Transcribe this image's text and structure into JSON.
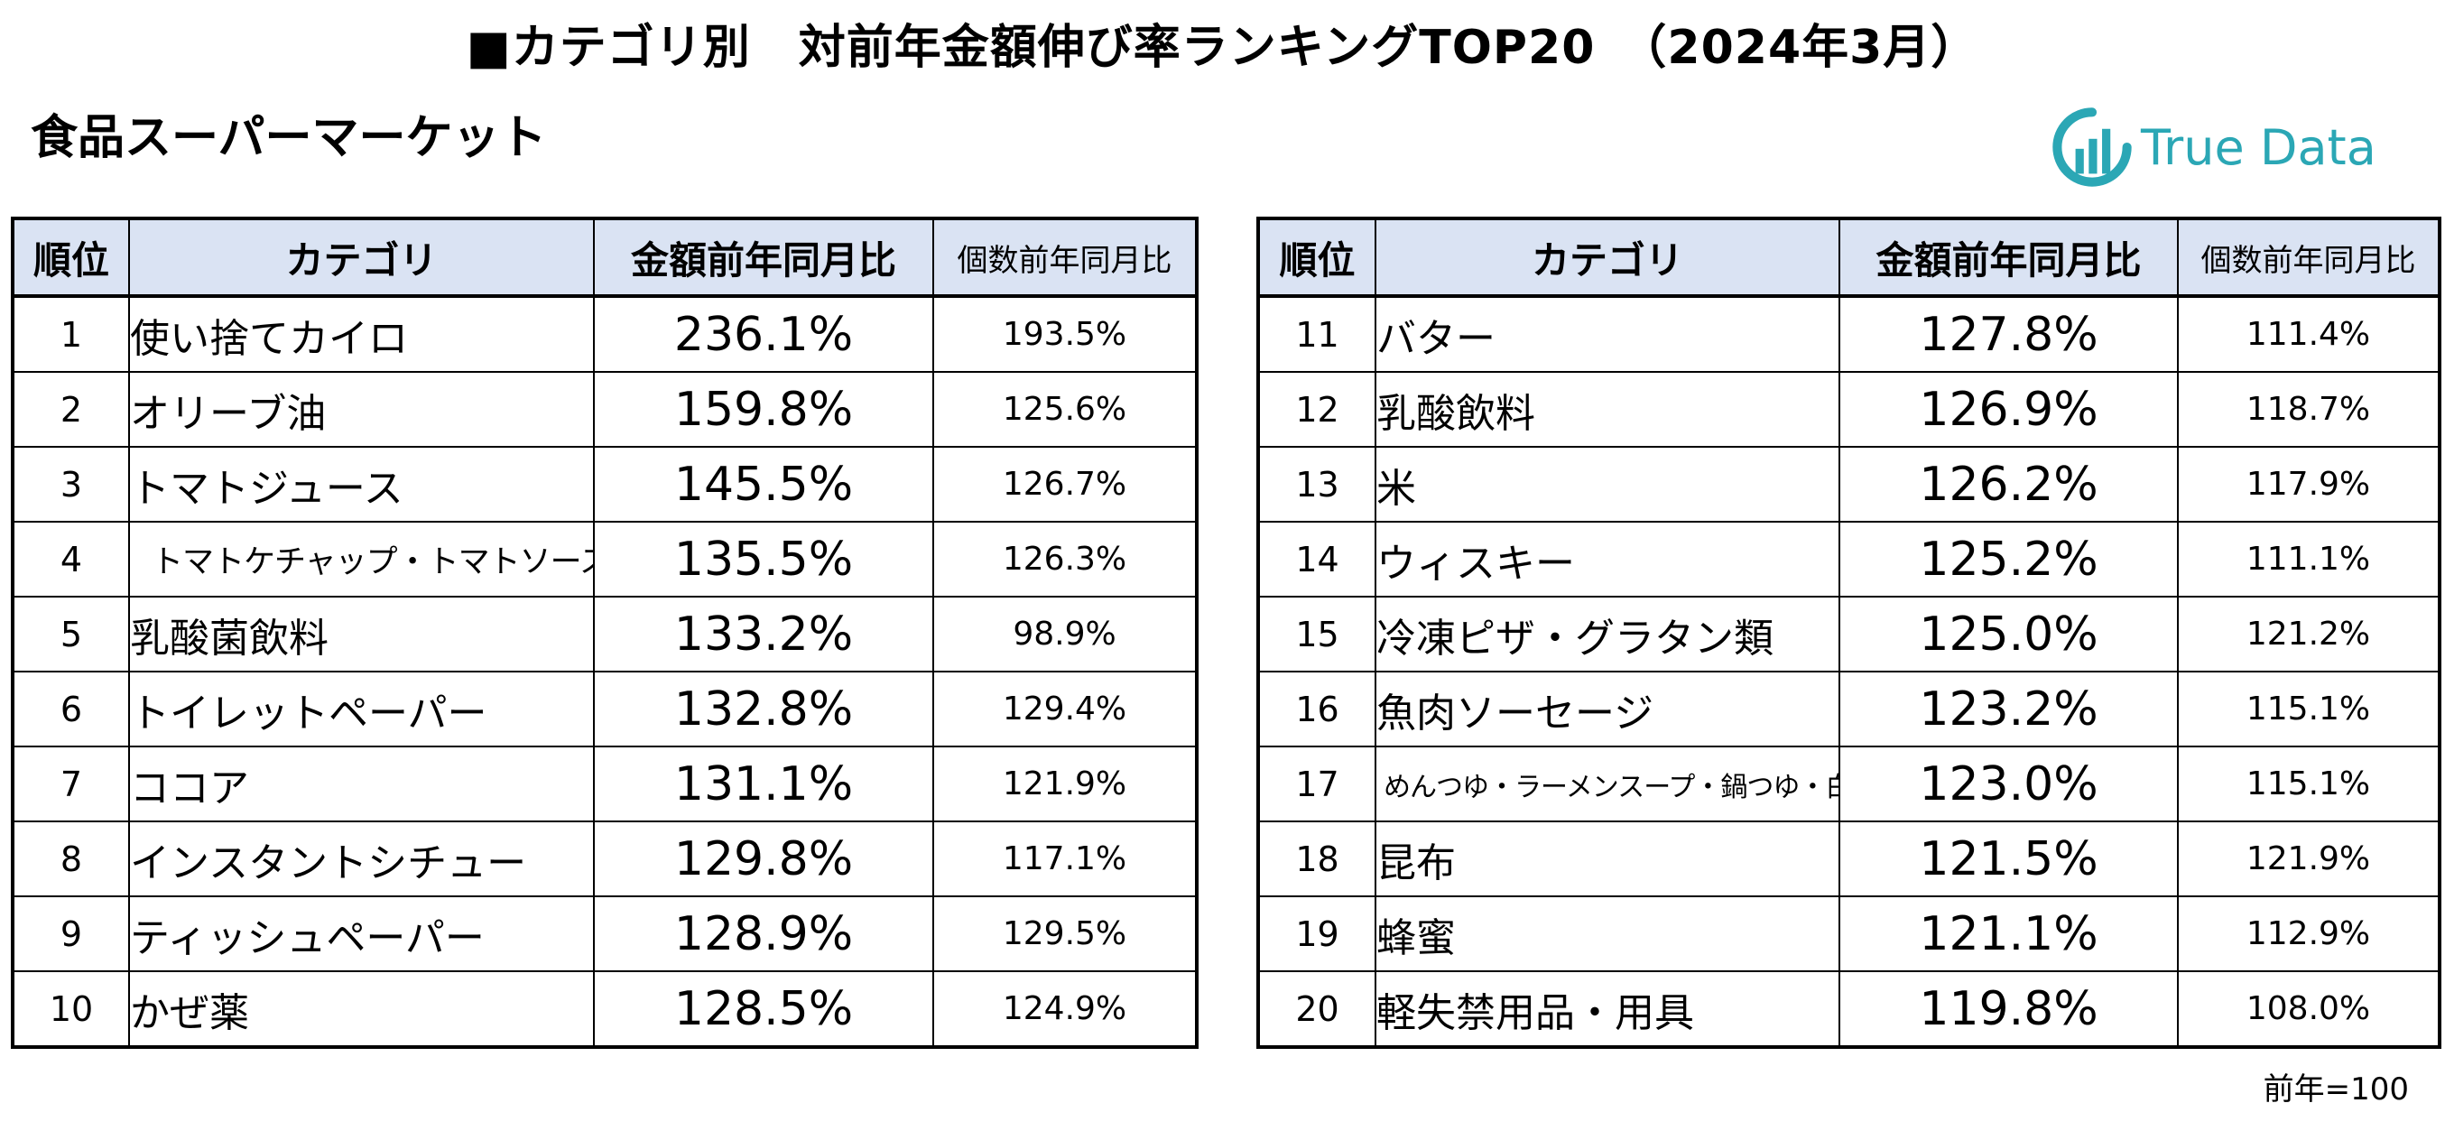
{
  "title": "■カテゴリ別　対前年金額伸び率ランキングTOP20　（2024年3月）",
  "subtitle": "食品スーパーマーケット",
  "logo": {
    "text": "True Data",
    "color": "#2ba7b5",
    "icon": "truedata-logo-icon"
  },
  "header_color": "#dae3f3",
  "columns": [
    "順位",
    "カテゴリ",
    "金額前年同月比",
    "個数前年同月比"
  ],
  "left_rows": [
    {
      "rank": "1",
      "category": "使い捨てカイロ",
      "amount": "236.1%",
      "count": "193.5%"
    },
    {
      "rank": "2",
      "category": "オリーブ油",
      "amount": "159.8%",
      "count": "125.6%"
    },
    {
      "rank": "3",
      "category": "トマトジュース",
      "amount": "145.5%",
      "count": "126.7%"
    },
    {
      "rank": "4",
      "category": "トマトケチャップ・トマトソース",
      "amount": "135.5%",
      "count": "126.3%"
    },
    {
      "rank": "5",
      "category": "乳酸菌飲料",
      "amount": "133.2%",
      "count": "98.9%"
    },
    {
      "rank": "6",
      "category": "トイレットペーパー",
      "amount": "132.8%",
      "count": "129.4%"
    },
    {
      "rank": "7",
      "category": "ココア",
      "amount": "131.1%",
      "count": "121.9%"
    },
    {
      "rank": "8",
      "category": "インスタントシチュー",
      "amount": "129.8%",
      "count": "117.1%"
    },
    {
      "rank": "9",
      "category": "ティッシュペーパー",
      "amount": "128.9%",
      "count": "129.5%"
    },
    {
      "rank": "10",
      "category": "かぜ薬",
      "amount": "128.5%",
      "count": "124.9%"
    }
  ],
  "right_rows": [
    {
      "rank": "11",
      "category": "バター",
      "amount": "127.8%",
      "count": "111.4%"
    },
    {
      "rank": "12",
      "category": "乳酸飲料",
      "amount": "126.9%",
      "count": "118.7%"
    },
    {
      "rank": "13",
      "category": "米",
      "amount": "126.2%",
      "count": "117.9%"
    },
    {
      "rank": "14",
      "category": "ウィスキー",
      "amount": "125.2%",
      "count": "111.1%"
    },
    {
      "rank": "15",
      "category": "冷凍ピザ・グラタン類",
      "amount": "125.0%",
      "count": "121.2%"
    },
    {
      "rank": "16",
      "category": "魚肉ソーセージ",
      "amount": "123.2%",
      "count": "115.1%"
    },
    {
      "rank": "17",
      "category": "めんつゆ・ラーメンスープ・鍋つゆ・白だし",
      "amount": "123.0%",
      "count": "115.1%"
    },
    {
      "rank": "18",
      "category": "昆布",
      "amount": "121.5%",
      "count": "121.9%"
    },
    {
      "rank": "19",
      "category": "蜂蜜",
      "amount": "121.1%",
      "count": "112.9%"
    },
    {
      "rank": "20",
      "category": "軽失禁用品・用具",
      "amount": "119.8%",
      "count": "108.0%"
    }
  ],
  "note": "前年=100"
}
